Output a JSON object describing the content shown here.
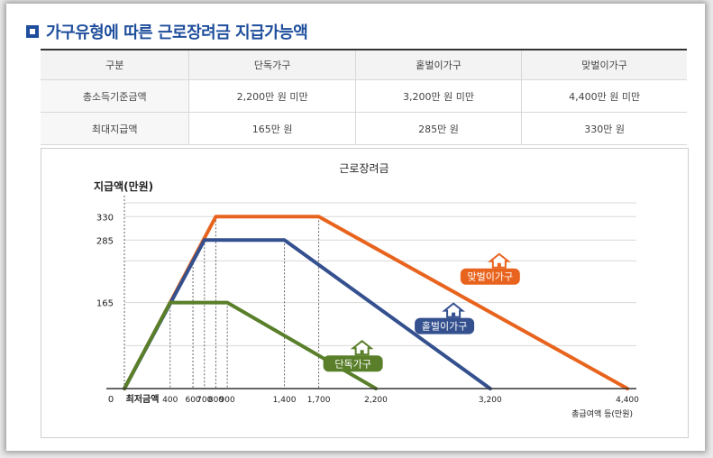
{
  "section": {
    "title": "가구유형에 따른 근로장려금 지급가능액"
  },
  "table": {
    "headers": [
      "구분",
      "단독가구",
      "홑벌이가구",
      "맞벌이가구"
    ],
    "rows": [
      {
        "label": "총소득기준금액",
        "values": [
          "2,200만 원 미만",
          "3,200만 원 미만",
          "4,400만 원 미만"
        ]
      },
      {
        "label": "최대지급액",
        "values": [
          "165만 원",
          "285만 원",
          "330만 원"
        ]
      }
    ]
  },
  "chart_data": {
    "type": "line",
    "title": "근로장려금",
    "ylabel": "지급액(만원)",
    "xlabel": "총급여액 등(만원)",
    "x_origin_label": "0",
    "x_min_wage_label": "최저금액",
    "x_ticks": [
      400,
      600,
      700,
      800,
      900,
      1400,
      1700,
      2200,
      3200,
      4400
    ],
    "x_tick_labels": [
      "400",
      "600",
      "700",
      "800",
      "900",
      "1,400",
      "1,700",
      "2,200",
      "3,200",
      "4,400"
    ],
    "y_ticks": [
      165,
      285,
      330
    ],
    "y_tick_labels": [
      "165",
      "285",
      "330"
    ],
    "xlim": [
      0,
      4400
    ],
    "ylim": [
      0,
      330
    ],
    "grid": true,
    "series": [
      {
        "name": "맞벌이가구",
        "color": "#e8641e",
        "x": [
          0,
          800,
          1700,
          4400
        ],
        "y": [
          0,
          330,
          330,
          0
        ]
      },
      {
        "name": "홑벌이가구",
        "color": "#34508e",
        "x": [
          0,
          700,
          1400,
          3200
        ],
        "y": [
          0,
          285,
          285,
          0
        ]
      },
      {
        "name": "단독가구",
        "color": "#5a7f2a",
        "x": [
          0,
          400,
          900,
          2200
        ],
        "y": [
          0,
          165,
          165,
          0
        ]
      }
    ],
    "colors": {
      "axis": "#333333",
      "grid": "#d9d9d9",
      "dotted": "#666666"
    }
  }
}
